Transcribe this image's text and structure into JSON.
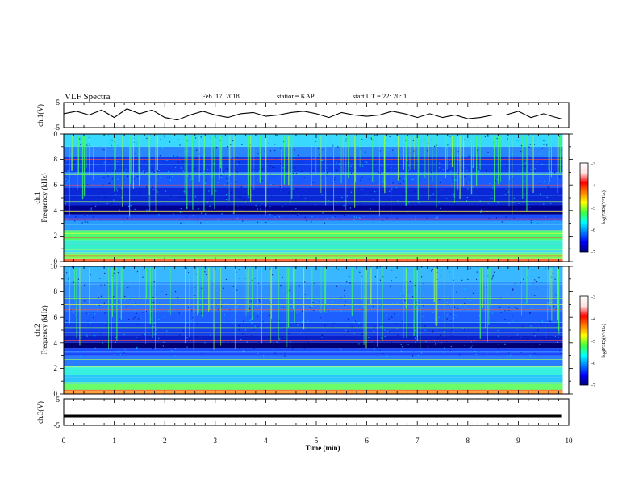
{
  "header": {
    "title": "VLF Spectra",
    "date": "Feb. 17, 2018",
    "station": "station= KAP",
    "start_ut": "start  UT  =   22: 20: 1"
  },
  "colors": {
    "trace": "#000000",
    "colormap": [
      "#000080",
      "#0000ff",
      "#0080ff",
      "#00ffff",
      "#40ff40",
      "#ffff00",
      "#ff8000",
      "#ff0000",
      "#ffe0e0",
      "#ffffff"
    ]
  },
  "chart_data": [
    {
      "type": "line",
      "panel": "ch1-waveform",
      "ylabel": "ch.1(V)",
      "ylim": [
        -5,
        5
      ],
      "y_ticks": [
        "5",
        "-5"
      ],
      "xlim": [
        0,
        10
      ],
      "x_minutes": [
        0,
        0.25,
        0.5,
        0.75,
        1,
        1.25,
        1.5,
        1.75,
        2,
        2.25,
        2.5,
        2.75,
        3,
        3.25,
        3.5,
        3.75,
        4,
        4.25,
        4.5,
        4.75,
        5,
        5.25,
        5.5,
        5.75,
        6,
        6.25,
        6.5,
        6.75,
        7,
        7.25,
        7.5,
        7.75,
        8,
        8.25,
        8.5,
        8.75,
        9,
        9.25,
        9.5,
        9.75,
        9.85
      ],
      "y_volts": [
        0.5,
        1.5,
        0,
        2,
        -1,
        2.5,
        0.5,
        2,
        -1,
        -2,
        0,
        1.5,
        0,
        -1,
        0.5,
        1,
        -0.5,
        0,
        1,
        1.5,
        0.5,
        -1,
        1,
        0,
        -0.5,
        0,
        1.5,
        0.5,
        -1,
        0.5,
        -1,
        0,
        -1.5,
        -1,
        0,
        0,
        1.5,
        -1,
        0.5,
        -1,
        -1.5
      ]
    },
    {
      "type": "heatmap",
      "panel": "ch1-spectrogram",
      "ylabel": [
        "ch.1",
        "Frequency  (kHz)"
      ],
      "ylim": [
        0,
        10
      ],
      "y_ticks": [
        "0",
        "2",
        "4",
        "6",
        "8",
        "10"
      ],
      "xlim": [
        0,
        10
      ],
      "colorbar": {
        "label": "log(PSD)(V²/Hz)",
        "range": [
          -7,
          -3
        ],
        "ticks": [
          "-3",
          "-4",
          "-5",
          "-6",
          "-7"
        ]
      }
    },
    {
      "type": "heatmap",
      "panel": "ch2-spectrogram",
      "ylabel": [
        "ch.2",
        "Frequency  (kHz)"
      ],
      "ylim": [
        0,
        10
      ],
      "y_ticks": [
        "0",
        "2",
        "4",
        "6",
        "8",
        "10"
      ],
      "xlim": [
        0,
        10
      ],
      "colorbar": {
        "label": "log(PSD)(V²/Hz)",
        "range": [
          -7,
          -3
        ],
        "ticks": [
          "-3",
          "-4",
          "-5",
          "-6",
          "-7"
        ]
      }
    },
    {
      "type": "line",
      "panel": "ch3-waveform",
      "ylabel": "ch.3(V)",
      "ylim": [
        -5,
        5
      ],
      "y_ticks": [
        "5",
        "-5"
      ],
      "xlim": [
        0,
        10
      ],
      "x_minutes": [
        0,
        9.85
      ],
      "y_volts": [
        -1.5,
        -1.5
      ]
    }
  ],
  "x_axis": {
    "label": "Time  (min)",
    "ticks": [
      "0",
      "1",
      "2",
      "3",
      "4",
      "5",
      "6",
      "7",
      "8",
      "9",
      "10"
    ]
  }
}
